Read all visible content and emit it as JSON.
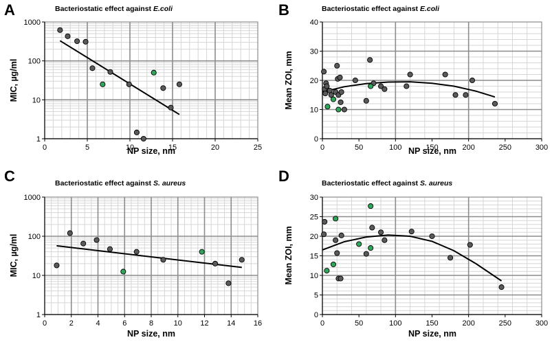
{
  "colors": {
    "dot_gray": "#5a5a5a",
    "dot_green": "#2fa65a",
    "line": "#000000",
    "major_grid": "#8c8c8c",
    "minor_grid": "#d6d6d6"
  },
  "chart_data": [
    {
      "panel": "A",
      "type": "scatter",
      "title": "Bacteriostatic effect against",
      "title_organism": "E.coli",
      "xlabel": "NP size, nm",
      "ylabel": "MIC, µg/ml",
      "xscale": "linear",
      "yscale": "log",
      "xlim": [
        0,
        25
      ],
      "ylim": [
        1,
        1000
      ],
      "xticks": [
        0,
        5,
        10,
        15,
        20,
        25
      ],
      "yticks": [
        1,
        10,
        100,
        1000
      ],
      "major_x_step": 5,
      "minor_x_step": 1,
      "series": [
        {
          "name": "gray",
          "color": "#5a5a5a",
          "points": [
            [
              1.8,
              620
            ],
            [
              2.7,
              430
            ],
            [
              3.8,
              320
            ],
            [
              4.8,
              310
            ],
            [
              5.6,
              65
            ],
            [
              7.7,
              52
            ],
            [
              9.9,
              25
            ],
            [
              10.8,
              1.45
            ],
            [
              11.6,
              1.0
            ],
            [
              13.9,
              20
            ],
            [
              14.8,
              6.3
            ],
            [
              15.8,
              25
            ]
          ]
        },
        {
          "name": "green",
          "color": "#2fa65a",
          "points": [
            [
              6.8,
              25
            ],
            [
              12.8,
              50
            ]
          ]
        }
      ],
      "fit": {
        "kind": "linear",
        "points": [
          [
            1.8,
            330
          ],
          [
            15.8,
            4.2
          ]
        ]
      }
    },
    {
      "panel": "B",
      "type": "scatter",
      "title": "Bacteriostatic effect against",
      "title_organism": "E.coli",
      "xlabel": "NP size, nm",
      "ylabel": "Mean ZOI, mm",
      "xscale": "linear",
      "yscale": "linear",
      "xlim": [
        0,
        300
      ],
      "ylim": [
        0,
        40
      ],
      "xticks": [
        0,
        50,
        100,
        150,
        200,
        250,
        300
      ],
      "yticks": [
        0,
        10,
        20,
        30,
        40
      ],
      "major_x_step": 100,
      "minor_x_step": 20,
      "major_y_step": 10,
      "minor_y_step": 2,
      "series": [
        {
          "name": "gray",
          "color": "#5a5a5a",
          "points": [
            [
              2,
              23
            ],
            [
              3,
              17
            ],
            [
              4,
              15.5
            ],
            [
              5,
              19
            ],
            [
              6,
              18
            ],
            [
              10,
              16.5
            ],
            [
              12,
              15
            ],
            [
              18,
              16
            ],
            [
              20,
              25
            ],
            [
              21,
              20.5
            ],
            [
              22,
              15
            ],
            [
              24,
              21
            ],
            [
              25,
              12.5
            ],
            [
              26,
              16
            ],
            [
              30,
              10
            ],
            [
              45,
              20
            ],
            [
              60,
              13
            ],
            [
              65,
              27
            ],
            [
              70,
              19
            ],
            [
              80,
              18
            ],
            [
              85,
              17
            ],
            [
              115,
              18
            ],
            [
              120,
              22
            ],
            [
              168,
              22
            ],
            [
              182,
              15
            ],
            [
              196,
              15
            ],
            [
              205,
              20
            ],
            [
              236,
              12
            ]
          ]
        },
        {
          "name": "green",
          "color": "#2fa65a",
          "points": [
            [
              7,
              11
            ],
            [
              15,
              13.5
            ],
            [
              22,
              10
            ],
            [
              66,
              18
            ]
          ]
        }
      ],
      "fit": {
        "kind": "quadratic",
        "points": [
          [
            0,
            16
          ],
          [
            30,
            17.8
          ],
          [
            60,
            18.9
          ],
          [
            90,
            19.4
          ],
          [
            120,
            19.5
          ],
          [
            150,
            19
          ],
          [
            180,
            18
          ],
          [
            210,
            16.3
          ],
          [
            236,
            14.3
          ]
        ]
      }
    },
    {
      "panel": "C",
      "type": "scatter",
      "title": "Bacteriostatic effect against",
      "title_organism": "S. aureus",
      "xlabel": "NP size, nm",
      "ylabel": "MIC, µg/ml",
      "xscale": "linear",
      "yscale": "log",
      "xlim": [
        0,
        16
      ],
      "ylim": [
        1,
        1000
      ],
      "xticks": [
        0,
        2,
        4,
        6,
        8,
        10,
        12,
        14,
        16
      ],
      "yticks": [
        1,
        10,
        100,
        1000
      ],
      "major_x_step": 2,
      "minor_x_step": 0.5,
      "series": [
        {
          "name": "gray",
          "color": "#5a5a5a",
          "points": [
            [
              0.9,
              18
            ],
            [
              1.9,
              120
            ],
            [
              2.9,
              65
            ],
            [
              3.9,
              80
            ],
            [
              4.9,
              47
            ],
            [
              6.9,
              40
            ],
            [
              8.9,
              25
            ],
            [
              12.8,
              20
            ],
            [
              13.8,
              6.3
            ],
            [
              14.8,
              25
            ]
          ]
        },
        {
          "name": "green",
          "color": "#2fa65a",
          "points": [
            [
              5.9,
              12.5
            ],
            [
              11.8,
              40
            ]
          ]
        }
      ],
      "fit": {
        "kind": "linear",
        "points": [
          [
            0.9,
            57
          ],
          [
            14.8,
            16
          ]
        ]
      }
    },
    {
      "panel": "D",
      "type": "scatter",
      "title": "Bacteriostatic effect against",
      "title_organism": "S. aureus",
      "xlabel": "NP size, nm",
      "ylabel": "Mean ZOI, mm",
      "xscale": "linear",
      "yscale": "linear",
      "xlim": [
        0,
        300
      ],
      "ylim": [
        0,
        30
      ],
      "xticks": [
        0,
        50,
        100,
        150,
        200,
        250,
        300
      ],
      "yticks": [
        0,
        5,
        10,
        15,
        20,
        25,
        30
      ],
      "major_x_step": 100,
      "minor_x_step": 20,
      "major_y_step": 5,
      "minor_y_step": 1,
      "series": [
        {
          "name": "gray",
          "color": "#5a5a5a",
          "points": [
            [
              2,
              20.5
            ],
            [
              3,
              23.7
            ],
            [
              18,
              19
            ],
            [
              20,
              15.7
            ],
            [
              22,
              9.2
            ],
            [
              25,
              9.2
            ],
            [
              26,
              20.2
            ],
            [
              60,
              15.5
            ],
            [
              68,
              22.2
            ],
            [
              80,
              21
            ],
            [
              85,
              19
            ],
            [
              122,
              21.2
            ],
            [
              150,
              20
            ],
            [
              175,
              14.5
            ],
            [
              202,
              17.8
            ],
            [
              245,
              7
            ]
          ]
        },
        {
          "name": "green",
          "color": "#2fa65a",
          "points": [
            [
              6,
              11.2
            ],
            [
              15,
              12.8
            ],
            [
              18,
              24.5
            ],
            [
              50,
              18
            ],
            [
              66,
              17
            ],
            [
              66,
              27.7
            ]
          ]
        }
      ],
      "fit": {
        "kind": "quadratic",
        "points": [
          [
            0,
            16.5
          ],
          [
            30,
            18.6
          ],
          [
            60,
            19.8
          ],
          [
            90,
            20.3
          ],
          [
            120,
            20
          ],
          [
            150,
            18.7
          ],
          [
            180,
            16.3
          ],
          [
            210,
            13
          ],
          [
            245,
            8.6
          ]
        ]
      }
    }
  ],
  "panels": {
    "A": {
      "label": "A",
      "title": "Bacteriostatic effect against",
      "organism": "E.coli",
      "xlabel": "NP size, nm",
      "ylabel": "MIC, µg/ml",
      "xticks": [
        "0",
        "5",
        "10",
        "15",
        "20",
        "25"
      ],
      "yticks": [
        "1",
        "10",
        "100",
        "1000"
      ]
    },
    "B": {
      "label": "B",
      "title": "Bacteriostatic effect against",
      "organism": "E.coli",
      "xlabel": "NP size, nm",
      "ylabel": "Mean ZOI, mm",
      "xticks": [
        "0",
        "50",
        "100",
        "150",
        "200",
        "250",
        "300"
      ],
      "yticks": [
        "0",
        "10",
        "20",
        "30",
        "40"
      ]
    },
    "C": {
      "label": "C",
      "title": "Bacteriostatic effect against",
      "organism": "S. aureus",
      "xlabel": "NP size, nm",
      "ylabel": "MIC, µg/ml",
      "xticks": [
        "0",
        "2",
        "4",
        "6",
        "8",
        "10",
        "12",
        "14",
        "16"
      ],
      "yticks": [
        "1",
        "10",
        "100",
        "1000"
      ]
    },
    "D": {
      "label": "D",
      "title": "Bacteriostatic effect against",
      "organism": "S. aureus",
      "xlabel": "NP size, nm",
      "ylabel": "Mean ZOI, mm",
      "xticks": [
        "0",
        "50",
        "100",
        "150",
        "200",
        "250",
        "300"
      ],
      "yticks": [
        "0",
        "5",
        "10",
        "15",
        "20",
        "25",
        "30"
      ]
    }
  }
}
